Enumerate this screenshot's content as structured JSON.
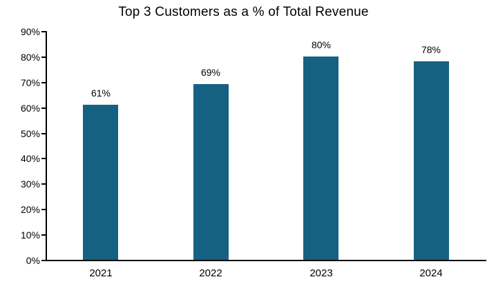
{
  "chart_data": {
    "type": "bar",
    "title": "Top 3 Customers as a % of Total Revenue",
    "categories": [
      "2021",
      "2022",
      "2023",
      "2024"
    ],
    "values": [
      61,
      69,
      80,
      78
    ],
    "data_labels": [
      "61%",
      "69%",
      "80%",
      "78%"
    ],
    "yticks": [
      "0%",
      "10%",
      "20%",
      "30%",
      "40%",
      "50%",
      "60%",
      "70%",
      "80%",
      "90%"
    ],
    "ylim": [
      0,
      90
    ],
    "xlabel": "",
    "ylabel": "",
    "grid": "off",
    "legend": "none",
    "bar_color": "#166181",
    "axis_color": "#000000",
    "text_color": "#000000",
    "background_color": "#ffffff"
  }
}
